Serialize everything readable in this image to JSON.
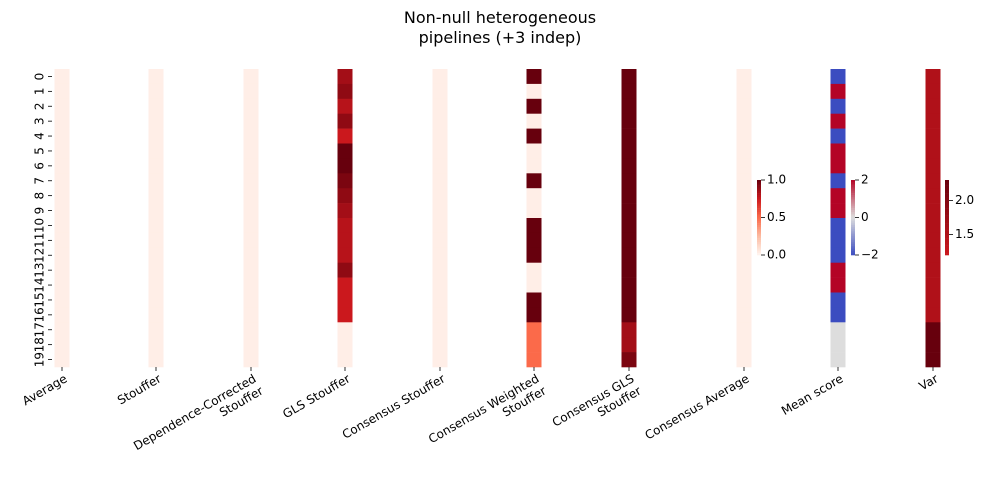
{
  "chart_data": {
    "type": "heatmap",
    "title": [
      "Non-null heterogeneous",
      "pipelines (+3 indep)"
    ],
    "rows": [
      "0",
      "1",
      "2",
      "3",
      "4",
      "5",
      "6",
      "7",
      "8",
      "9",
      "10",
      "11",
      "12",
      "13",
      "14",
      "15",
      "16",
      "17",
      "18",
      "19"
    ],
    "panels": [
      {
        "label": [
          "Average"
        ],
        "scale": "seq",
        "values": [
          0.03,
          0.03,
          0.03,
          0.03,
          0.03,
          0.03,
          0.03,
          0.03,
          0.03,
          0.03,
          0.03,
          0.03,
          0.03,
          0.03,
          0.03,
          0.03,
          0.03,
          0.03,
          0.03,
          0.03
        ]
      },
      {
        "label": [
          "Stouffer"
        ],
        "scale": "seq",
        "values": [
          0.03,
          0.03,
          0.03,
          0.03,
          0.03,
          0.03,
          0.03,
          0.03,
          0.03,
          0.03,
          0.03,
          0.03,
          0.03,
          0.03,
          0.03,
          0.03,
          0.03,
          0.03,
          0.03,
          0.03
        ]
      },
      {
        "label": [
          "Dependence-Corrected",
          "Stouffer"
        ],
        "scale": "seq",
        "values": [
          0.03,
          0.03,
          0.03,
          0.03,
          0.03,
          0.03,
          0.03,
          0.03,
          0.03,
          0.03,
          0.03,
          0.03,
          0.03,
          0.03,
          0.03,
          0.03,
          0.03,
          0.03,
          0.03,
          0.03
        ]
      },
      {
        "label": [
          "GLS Stouffer"
        ],
        "scale": "seq",
        "values": [
          0.85,
          0.9,
          0.8,
          0.9,
          0.75,
          1.0,
          1.0,
          0.95,
          0.9,
          0.85,
          0.8,
          0.8,
          0.8,
          0.9,
          0.75,
          0.75,
          0.75,
          0.03,
          0.03,
          0.03
        ]
      },
      {
        "label": [
          "Consensus Stouffer"
        ],
        "scale": "seq",
        "values": [
          0.03,
          0.03,
          0.03,
          0.03,
          0.03,
          0.03,
          0.03,
          0.03,
          0.03,
          0.03,
          0.03,
          0.03,
          0.03,
          0.03,
          0.03,
          0.03,
          0.03,
          0.03,
          0.03,
          0.03
        ]
      },
      {
        "label": [
          "Consensus Weighted",
          "Stouffer"
        ],
        "scale": "seq",
        "values": [
          1.0,
          0.03,
          1.0,
          0.03,
          1.0,
          0.03,
          0.03,
          1.0,
          0.03,
          0.03,
          1.0,
          1.0,
          1.0,
          0.03,
          0.03,
          1.0,
          1.0,
          0.5,
          0.5,
          0.5
        ]
      },
      {
        "label": [
          "Consensus GLS",
          "Stouffer"
        ],
        "scale": "seq",
        "values": [
          1.0,
          1.0,
          1.0,
          1.0,
          1.0,
          1.0,
          1.0,
          1.0,
          1.0,
          1.0,
          1.0,
          1.0,
          1.0,
          1.0,
          1.0,
          1.0,
          1.0,
          0.85,
          0.85,
          0.95
        ]
      },
      {
        "label": [
          "Consensus Average"
        ],
        "scale": "seq",
        "values": [
          0.03,
          0.03,
          0.03,
          0.03,
          0.03,
          0.03,
          0.03,
          0.03,
          0.03,
          0.03,
          0.03,
          0.03,
          0.03,
          0.03,
          0.03,
          0.03,
          0.03,
          0.03,
          0.03,
          0.03
        ]
      },
      {
        "label": [
          "Mean score"
        ],
        "scale": "div",
        "values": [
          -2,
          2,
          -2,
          2,
          -2,
          2,
          2,
          -2,
          2,
          2,
          -2,
          -2,
          -2,
          2,
          2,
          -2,
          -2,
          null,
          null,
          null
        ]
      },
      {
        "label": [
          "Var"
        ],
        "scale": "var",
        "values": [
          1.5,
          1.5,
          1.5,
          1.5,
          1.5,
          1.5,
          1.5,
          1.5,
          1.5,
          1.5,
          1.5,
          1.5,
          1.5,
          1.5,
          1.5,
          1.5,
          1.5,
          2.3,
          2.3,
          2.3
        ]
      }
    ],
    "colorbars": [
      {
        "scale": "seq",
        "range": [
          0,
          1
        ],
        "ticks": [
          "1.0",
          "0.5",
          "0.0"
        ],
        "tick_values": [
          1.0,
          0.5,
          0.0
        ]
      },
      {
        "scale": "div",
        "range": [
          -2,
          2
        ],
        "ticks": [
          "2",
          "0",
          "−2"
        ],
        "tick_values": [
          2,
          0,
          -2
        ]
      },
      {
        "scale": "var",
        "range": [
          1.2,
          2.3
        ],
        "ticks": [
          "2.0",
          "1.5"
        ],
        "tick_values": [
          2.0,
          1.5
        ]
      }
    ],
    "colors": {
      "seq": [
        "#fff5f0",
        "#fcbba1",
        "#fb6a4a",
        "#cb181d",
        "#67000d"
      ],
      "div": [
        "#3b4cc0",
        "#dddddd",
        "#b40426"
      ],
      "var": [
        "#cb181d",
        "#67000d"
      ],
      "missing": "#dddddd"
    }
  }
}
